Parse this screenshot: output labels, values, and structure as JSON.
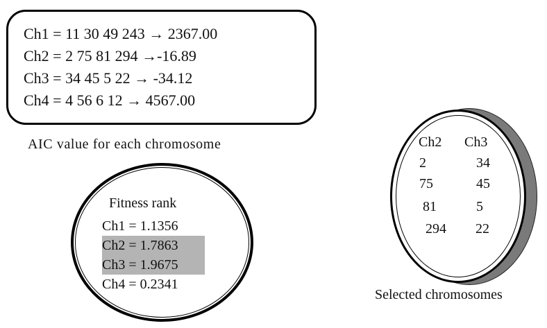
{
  "aic": {
    "lines": [
      "Ch1 = 11 30 49 243 → 2367.00",
      "Ch2 = 2 75 81 294 →-16.89",
      "Ch3 = 34 45 5 22 → -34.12",
      "Ch4 = 4 56 6 12 → 4567.00"
    ],
    "caption": "AIC value for each chromosome"
  },
  "fitness": {
    "title": "Fitness rank",
    "rows": [
      {
        "text": "Ch1 = 1.1356",
        "highlighted": false
      },
      {
        "text": "Ch2 = 1.7863",
        "highlighted": true
      },
      {
        "text": "Ch3 = 1.9675",
        "highlighted": true
      },
      {
        "text": "Ch4 = 0.2341",
        "highlighted": false
      }
    ],
    "highlight_color": "#b4b4b4"
  },
  "selected": {
    "headers": [
      "Ch2",
      "Ch3"
    ],
    "col1": [
      "2",
      "75",
      "81",
      "294"
    ],
    "col2": [
      "34",
      "45",
      "5",
      "22"
    ],
    "caption": "Selected chromosomes",
    "shadow_color": "#7a7a7a"
  }
}
